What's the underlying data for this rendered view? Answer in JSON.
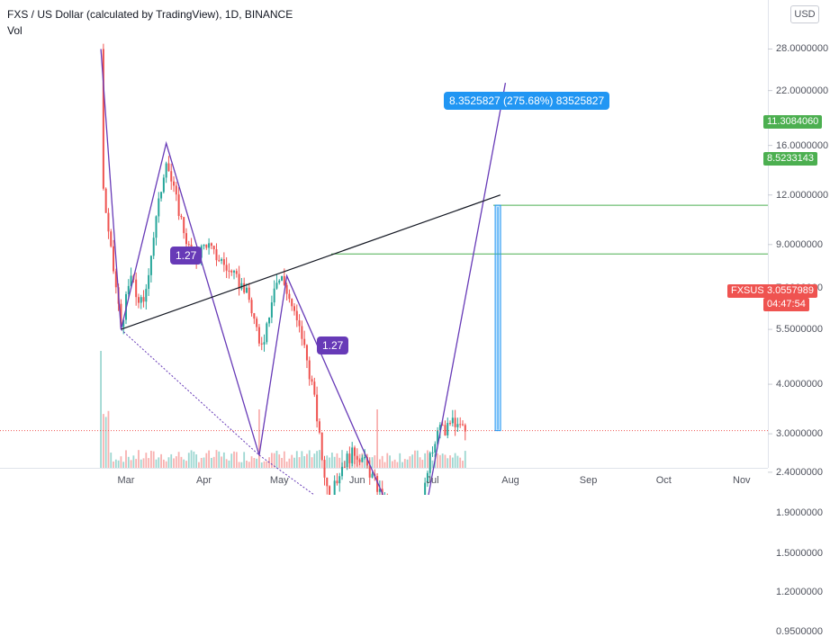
{
  "header": {
    "title": "FXS / US Dollar (calculated by TradingView), 1D, BINANCE",
    "volume_label": "Vol"
  },
  "scale_button": "USD",
  "colors": {
    "up": "#26a69a",
    "down": "#ef5350",
    "pattern": "#673ab7",
    "target": "#4caf50",
    "measure": "#2196f3",
    "price_tag": "#ef5350"
  },
  "chart_data": {
    "type": "candlestick",
    "symbol": "FXSUSD",
    "exchange": "BINANCE",
    "interval": "1D",
    "y_scale": "log",
    "y_ticks": [
      "28.0000000",
      "22.0000000",
      "16.0000000",
      "12.0000000",
      "9.0000000",
      "7.0000000",
      "5.5000000",
      "4.0000000",
      "3.0000000",
      "2.4000000",
      "1.9000000",
      "1.5000000",
      "1.2000000",
      "0.9500000"
    ],
    "x_ticks": [
      "Mar",
      "Apr",
      "May",
      "Jun",
      "Jul",
      "Aug",
      "Sep",
      "Oct",
      "Nov"
    ],
    "price_path": [
      [
        "2021-02-19",
        28.0
      ],
      [
        "2021-02-20",
        12.5
      ],
      [
        "2021-02-22",
        9.5
      ],
      [
        "2021-02-25",
        7.0
      ],
      [
        "2021-02-27",
        5.6
      ],
      [
        "2021-03-01",
        6.5
      ],
      [
        "2021-03-03",
        7.5
      ],
      [
        "2021-03-05",
        6.7
      ],
      [
        "2021-03-08",
        6.3
      ],
      [
        "2021-03-10",
        7.8
      ],
      [
        "2021-03-12",
        9.5
      ],
      [
        "2021-03-15",
        12.5
      ],
      [
        "2021-03-17",
        15.0
      ],
      [
        "2021-03-19",
        13.0
      ],
      [
        "2021-03-22",
        11.0
      ],
      [
        "2021-03-24",
        9.8
      ],
      [
        "2021-03-26",
        8.8
      ],
      [
        "2021-03-28",
        8.0
      ],
      [
        "2021-03-30",
        8.6
      ],
      [
        "2021-04-02",
        9.1
      ],
      [
        "2021-04-05",
        8.5
      ],
      [
        "2021-04-08",
        8.2
      ],
      [
        "2021-04-11",
        7.7
      ],
      [
        "2021-04-14",
        7.3
      ],
      [
        "2021-04-17",
        7.0
      ],
      [
        "2021-04-19",
        6.5
      ],
      [
        "2021-04-21",
        5.8
      ],
      [
        "2021-04-23",
        5.0
      ],
      [
        "2021-04-25",
        5.3
      ],
      [
        "2021-04-27",
        6.1
      ],
      [
        "2021-04-29",
        7.2
      ],
      [
        "2021-05-02",
        7.4
      ],
      [
        "2021-05-04",
        6.9
      ],
      [
        "2021-05-06",
        6.3
      ],
      [
        "2021-05-08",
        5.7
      ],
      [
        "2021-05-10",
        5.3
      ],
      [
        "2021-05-12",
        4.6
      ],
      [
        "2021-05-14",
        4.0
      ],
      [
        "2021-05-16",
        3.3
      ],
      [
        "2021-05-18",
        2.6
      ],
      [
        "2021-05-20",
        2.2
      ],
      [
        "2021-05-22",
        2.1
      ],
      [
        "2021-05-24",
        2.3
      ],
      [
        "2021-05-26",
        2.5
      ],
      [
        "2021-05-28",
        2.6
      ],
      [
        "2021-05-31",
        2.7
      ],
      [
        "2021-06-03",
        2.6
      ],
      [
        "2021-06-06",
        2.4
      ],
      [
        "2021-06-09",
        2.2
      ],
      [
        "2021-06-12",
        2.0
      ],
      [
        "2021-06-15",
        1.95
      ],
      [
        "2021-06-18",
        1.9
      ],
      [
        "2021-06-20",
        1.85
      ],
      [
        "2021-06-22",
        1.6
      ],
      [
        "2021-06-24",
        1.5
      ],
      [
        "2021-06-26",
        1.8
      ],
      [
        "2021-06-28",
        2.2
      ],
      [
        "2021-06-30",
        2.6
      ],
      [
        "2021-07-02",
        2.8
      ],
      [
        "2021-07-04",
        3.2
      ],
      [
        "2021-07-06",
        3.0
      ],
      [
        "2021-07-08",
        3.3
      ],
      [
        "2021-07-10",
        3.05
      ],
      [
        "2021-07-12",
        3.1
      ],
      [
        "2021-07-14",
        3.05
      ]
    ],
    "last_price": "3.0557989",
    "price_label": "FXSUSD",
    "countdown": "04:47:54",
    "target_levels": [
      "11.3084060",
      "8.5233143"
    ],
    "measure_label": "8.3525827 (275.68%) 83525827",
    "fib_labels": [
      "1.27",
      "1.27"
    ]
  }
}
